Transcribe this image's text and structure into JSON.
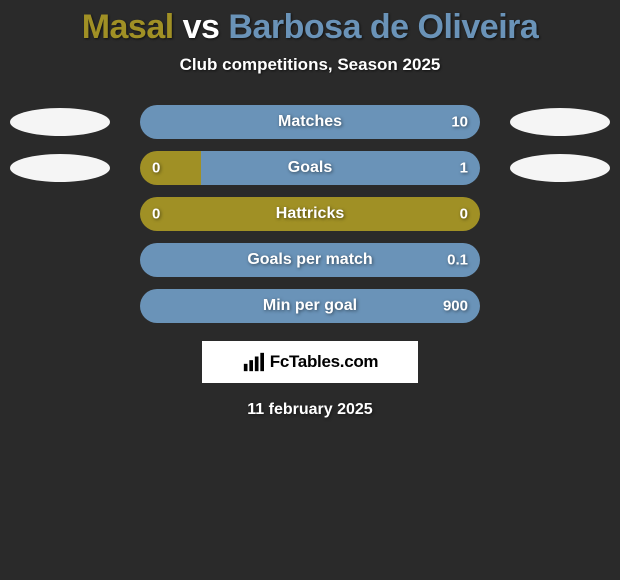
{
  "title": {
    "player1": "Masal",
    "vs": "vs",
    "player2": "Barbosa de Oliveira",
    "player1_color": "#a09025",
    "vs_color": "#ffffff",
    "player2_color": "#6a93b8"
  },
  "subtitle": "Club competitions, Season 2025",
  "colors": {
    "player1_bar": "#a09025",
    "player2_bar": "#6a93b8",
    "background": "#2a2a2a",
    "marker": "#f5f5f5"
  },
  "stats": [
    {
      "label": "Matches",
      "left_value": "",
      "right_value": "10",
      "left_pct": 0,
      "right_pct": 100,
      "show_left_marker": true,
      "show_right_marker": true
    },
    {
      "label": "Goals",
      "left_value": "0",
      "right_value": "1",
      "left_pct": 18,
      "right_pct": 82,
      "show_left_marker": true,
      "show_right_marker": true
    },
    {
      "label": "Hattricks",
      "left_value": "0",
      "right_value": "0",
      "left_pct": 100,
      "right_pct": 0,
      "show_left_marker": false,
      "show_right_marker": false
    },
    {
      "label": "Goals per match",
      "left_value": "",
      "right_value": "0.1",
      "left_pct": 0,
      "right_pct": 100,
      "show_left_marker": false,
      "show_right_marker": false
    },
    {
      "label": "Min per goal",
      "left_value": "",
      "right_value": "900",
      "left_pct": 0,
      "right_pct": 100,
      "show_left_marker": false,
      "show_right_marker": false
    }
  ],
  "brand": {
    "text": "FcTables.com"
  },
  "date": "11 february 2025"
}
